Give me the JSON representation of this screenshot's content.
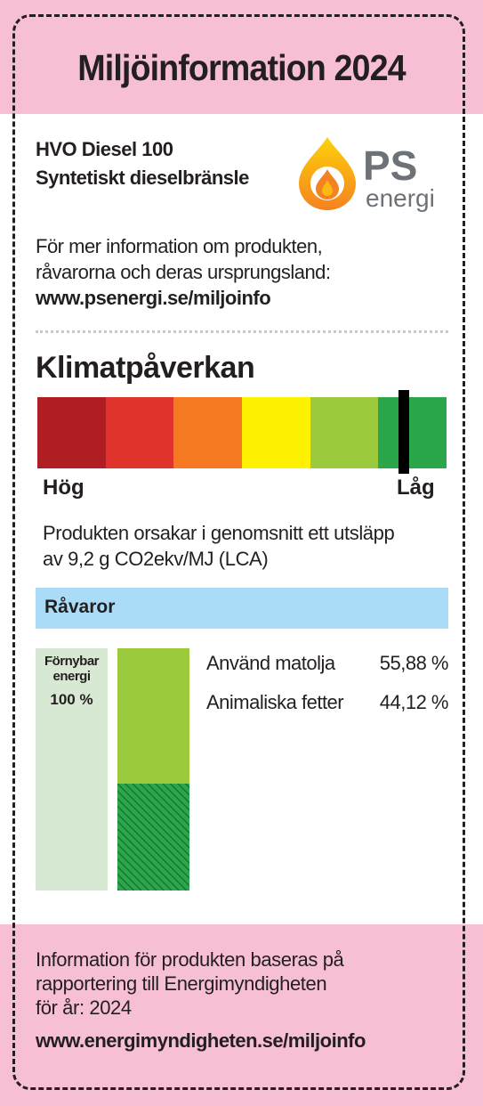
{
  "header": {
    "title": "Miljöinformation 2024"
  },
  "product": {
    "name_line1": "HVO Diesel 100",
    "name_line2": "Syntetiskt dieselbränsle"
  },
  "logo": {
    "text_main": "PS",
    "text_sub": "energi",
    "icon": "flame-drop-icon"
  },
  "info": {
    "line1": "För mer information om produkten,",
    "line2": "råvarorna och deras ursprungsland:",
    "url": "www.psenergi.se/miljoinfo"
  },
  "climate": {
    "heading": "Klimatpåverkan",
    "scale_colors": [
      "#b01e23",
      "#e0332c",
      "#f47920",
      "#fff200",
      "#9bcb3c",
      "#2aa74a"
    ],
    "marker_position_fraction": 0.895,
    "high_label": "Hög",
    "low_label": "Låg",
    "emission_line1": "Produkten orsakar i genomsnitt ett utsläpp",
    "emission_line2": "av 9,2 g CO2ekv/MJ (LCA)"
  },
  "raw_materials": {
    "heading": "Råvaror",
    "renewable_label_line1": "Förnybar",
    "renewable_label_line2": "energi",
    "renewable_percent": "100 %",
    "items": [
      {
        "name": "Använd matolja",
        "value": "55,88 %",
        "share": 0.5588,
        "color": "#9bcb3c",
        "pattern": "solid"
      },
      {
        "name": "Animaliska fetter",
        "value": "44,12 %",
        "share": 0.4412,
        "color": "#2aa74a",
        "pattern": "hatched"
      }
    ]
  },
  "footer": {
    "line1": "Information för produkten baseras på",
    "line2": "rapportering till Energimyndigheten",
    "line3": "för år: 2024",
    "url": "www.energimyndigheten.se/miljoinfo"
  }
}
